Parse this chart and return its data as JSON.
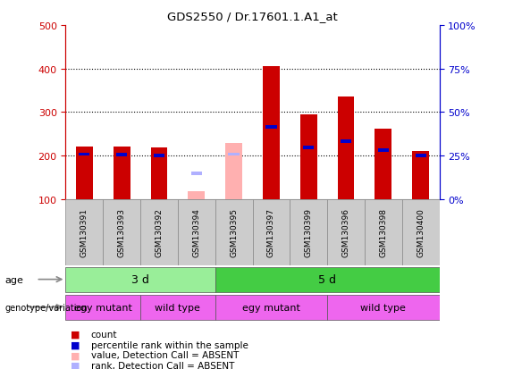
{
  "title": "GDS2550 / Dr.17601.1.A1_at",
  "samples": [
    "GSM130391",
    "GSM130393",
    "GSM130392",
    "GSM130394",
    "GSM130395",
    "GSM130397",
    "GSM130399",
    "GSM130396",
    "GSM130398",
    "GSM130400"
  ],
  "bar_bottom": 100,
  "count_values": [
    220,
    220,
    218,
    null,
    null,
    405,
    295,
    335,
    262,
    210
  ],
  "rank_values": [
    203,
    202,
    200,
    null,
    null,
    265,
    218,
    232,
    213,
    200
  ],
  "absent_count": [
    null,
    null,
    null,
    118,
    228,
    null,
    null,
    null,
    null,
    null
  ],
  "absent_rank": [
    null,
    null,
    null,
    158,
    203,
    null,
    null,
    null,
    null,
    null
  ],
  "ylim_left": [
    100,
    500
  ],
  "ylim_right": [
    0,
    100
  ],
  "yticks_left": [
    100,
    200,
    300,
    400,
    500
  ],
  "yticks_right": [
    0,
    25,
    50,
    75,
    100
  ],
  "grid_values": [
    200,
    300,
    400
  ],
  "bar_color": "#cc0000",
  "rank_color": "#0000cc",
  "absent_bar_color": "#ffb0b0",
  "absent_rank_color": "#b0b0ff",
  "bar_width": 0.45,
  "rank_marker_height": 8,
  "age_data": [
    {
      "label": "3 d",
      "xmin": -0.5,
      "xmax": 3.5,
      "color": "#99ee99"
    },
    {
      "label": "5 d",
      "xmin": 3.5,
      "xmax": 9.5,
      "color": "#44cc44"
    }
  ],
  "gen_data": [
    {
      "label": "egy mutant",
      "xmin": -0.5,
      "xmax": 1.5,
      "color": "#ee66ee"
    },
    {
      "label": "wild type",
      "xmin": 1.5,
      "xmax": 3.5,
      "color": "#ee66ee"
    },
    {
      "label": "egy mutant",
      "xmin": 3.5,
      "xmax": 6.5,
      "color": "#ee66ee"
    },
    {
      "label": "wild type",
      "xmin": 6.5,
      "xmax": 9.5,
      "color": "#ee66ee"
    }
  ],
  "left_axis_color": "#cc0000",
  "right_axis_color": "#0000cc",
  "background_color": "#ffffff",
  "plot_bg_color": "#ffffff",
  "tick_bg_color": "#cccccc",
  "legend_items": [
    {
      "color": "#cc0000",
      "label": "count"
    },
    {
      "color": "#0000cc",
      "label": "percentile rank within the sample"
    },
    {
      "color": "#ffb0b0",
      "label": "value, Detection Call = ABSENT"
    },
    {
      "color": "#b0b0ff",
      "label": "rank, Detection Call = ABSENT"
    }
  ]
}
